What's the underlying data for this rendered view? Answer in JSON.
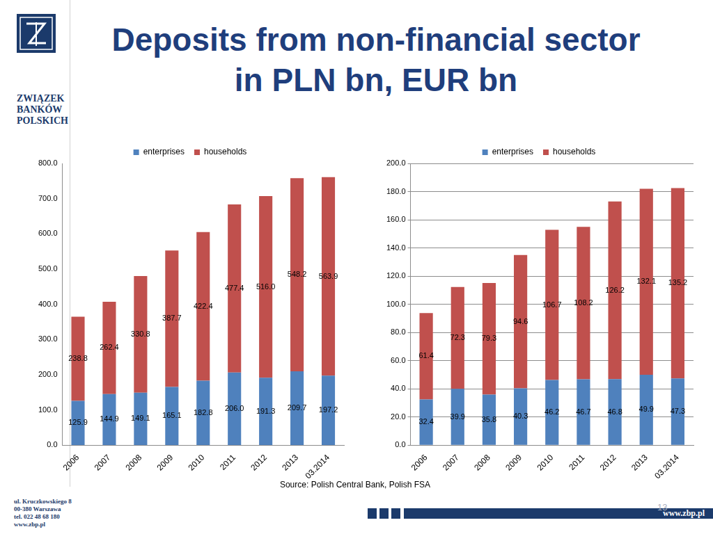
{
  "page": {
    "title": [
      "Deposits from non-financial sector",
      "in PLN bn, EUR bn"
    ],
    "logo_text": [
      "ZWIĄZEK",
      "BANKÓW",
      "POLSKICH"
    ],
    "source": "Source: Polish Central Bank, Polish FSA",
    "address": [
      "ul. Kruczkowskiego 8",
      "00-380 Warszawa",
      "tel. 022 48 68 180",
      "www.zbp.pl"
    ],
    "website": "www.zbp.pl",
    "page_number": "13"
  },
  "chart_data": [
    {
      "type": "bar",
      "stacked": true,
      "grid": false,
      "legend": "top",
      "data_labels": true,
      "categories": [
        "2006",
        "2007",
        "2008",
        "2009",
        "2010",
        "2011",
        "2012",
        "2013",
        "03.2014"
      ],
      "ylim": [
        0,
        800
      ],
      "yticks": [
        {
          "value": 0,
          "label": "0.0"
        },
        {
          "value": 100,
          "label": "100.0"
        },
        {
          "value": 200,
          "label": "200.0"
        },
        {
          "value": 300,
          "label": "300.0"
        },
        {
          "value": 400,
          "label": "400.0"
        },
        {
          "value": 500,
          "label": "500.0"
        },
        {
          "value": 600,
          "label": "600.0"
        },
        {
          "value": 700,
          "label": "700.0"
        },
        {
          "value": 800,
          "label": "800.0"
        }
      ],
      "series": [
        {
          "name": "enterprises",
          "color": "#4F81BD",
          "values": [
            125.9,
            144.9,
            149.1,
            165.1,
            182.8,
            206.0,
            191.3,
            209.7,
            197.2
          ],
          "value_labels": [
            "125.9",
            "144.9",
            "149.1",
            "165.1",
            "182.8",
            "206.0",
            "191.3",
            "209.7",
            "197.2"
          ]
        },
        {
          "name": "households",
          "color": "#C0504D",
          "values": [
            238.8,
            262.4,
            330.8,
            387.7,
            422.4,
            477.4,
            516.0,
            548.2,
            563.9
          ],
          "value_labels": [
            "238.8",
            "262.4",
            "330.8",
            "387.7",
            "422.4",
            "477.4",
            "516.0",
            "548.2",
            "563.9"
          ]
        }
      ]
    },
    {
      "type": "bar",
      "stacked": true,
      "grid": true,
      "legend": "top",
      "data_labels": true,
      "categories": [
        "2006",
        "2007",
        "2008",
        "2009",
        "2010",
        "2011",
        "2012",
        "2013",
        "03.2014"
      ],
      "ylim": [
        0,
        200
      ],
      "yticks": [
        {
          "value": 0,
          "label": "0.0"
        },
        {
          "value": 20,
          "label": "20.0"
        },
        {
          "value": 40,
          "label": "40.0"
        },
        {
          "value": 60,
          "label": "60.0"
        },
        {
          "value": 80,
          "label": "80.0"
        },
        {
          "value": 100,
          "label": "100.0"
        },
        {
          "value": 120,
          "label": "120.0"
        },
        {
          "value": 140,
          "label": "140.0"
        },
        {
          "value": 160,
          "label": "160.0"
        },
        {
          "value": 180,
          "label": "180.0"
        },
        {
          "value": 200,
          "label": "200.0"
        }
      ],
      "series": [
        {
          "name": "enterprises",
          "color": "#4F81BD",
          "values": [
            32.4,
            39.9,
            35.8,
            40.3,
            46.2,
            46.7,
            46.8,
            49.9,
            47.3
          ],
          "value_labels": [
            "32.4",
            "39.9",
            "35.8",
            "40.3",
            "46.2",
            "46.7",
            "46.8",
            "49.9",
            "47.3"
          ]
        },
        {
          "name": "households",
          "color": "#C0504D",
          "values": [
            61.4,
            72.3,
            79.3,
            94.6,
            106.7,
            108.2,
            126.2,
            132.1,
            135.2
          ],
          "value_labels": [
            "61.4",
            "72.3",
            "79.3",
            "94.6",
            "106.7",
            "108.2",
            "126.2",
            "132.1",
            "135.2"
          ]
        }
      ]
    }
  ]
}
